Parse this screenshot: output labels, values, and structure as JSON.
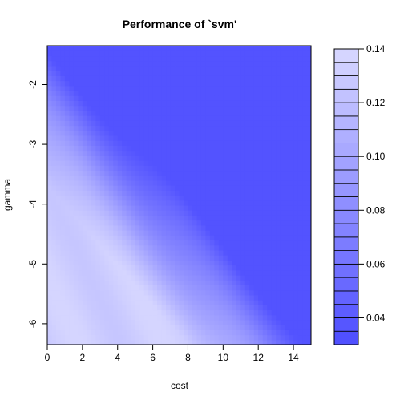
{
  "chart_data": {
    "type": "heatmap",
    "title": "Performance of `svm'",
    "xlabel": "cost",
    "ylabel": "gamma",
    "xlim": [
      0,
      15
    ],
    "ylim": [
      -6.35,
      -1.35
    ],
    "x_ticks": [
      "0",
      "2",
      "4",
      "6",
      "8",
      "10",
      "12",
      "14"
    ],
    "y_ticks": [
      "-2",
      "-3",
      "-4",
      "-5",
      "-6"
    ],
    "colorbar": {
      "range": [
        0.03,
        0.14
      ],
      "ticks": [
        "0.04",
        "0.06",
        "0.08",
        "0.10",
        "0.12",
        "0.14"
      ],
      "low_color": "#4d4dff",
      "high_color": "#d8d8ff"
    },
    "colors": {
      "low": "#4d4dff",
      "high": "#d8d8ff",
      "axis": "#000000"
    }
  }
}
